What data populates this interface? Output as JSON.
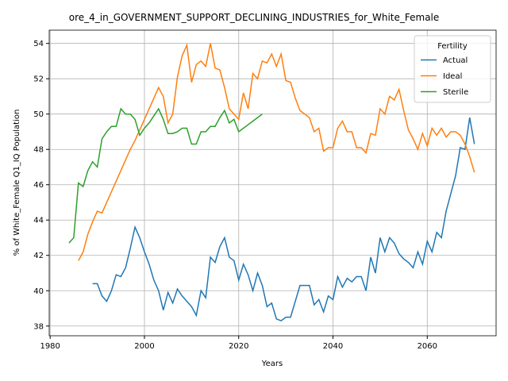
{
  "chart_data": {
    "type": "line",
    "title": "ore_4_in_GOVERNMENT_SUPPORT_DECLINING_INDUSTRIES_for_White_Female",
    "xlabel": "Years",
    "ylabel": "% of White_Female Q1_IQ Population",
    "legend_title": "Fertility",
    "legend": "upper right",
    "grid": true,
    "xlim": [
      1979.8,
      2074.6
    ],
    "xticks": [
      1980,
      2000,
      2020,
      2040,
      2060
    ],
    "ylim": [
      37.45,
      54.75
    ],
    "yticks": [
      38,
      40,
      42,
      44,
      46,
      48,
      50,
      52,
      54
    ],
    "x": [
      1984,
      1985,
      1986,
      1987,
      1988,
      1989,
      1990,
      1991,
      1992,
      1993,
      1994,
      1995,
      1996,
      1997,
      1998,
      1999,
      2000,
      2001,
      2002,
      2003,
      2004,
      2005,
      2006,
      2007,
      2008,
      2009,
      2010,
      2011,
      2012,
      2013,
      2014,
      2015,
      2016,
      2017,
      2018,
      2019,
      2020,
      2021,
      2022,
      2023,
      2024,
      2025,
      2026,
      2027,
      2028,
      2029,
      2030,
      2031,
      2032,
      2033,
      2034,
      2035,
      2036,
      2037,
      2038,
      2039,
      2040,
      2041,
      2042,
      2043,
      2044,
      2045,
      2046,
      2047,
      2048,
      2049,
      2050,
      2051,
      2052,
      2053,
      2054,
      2055,
      2056,
      2057,
      2058,
      2059,
      2060,
      2061,
      2062,
      2063,
      2064,
      2065,
      2066,
      2067,
      2068,
      2069,
      2070
    ],
    "series": [
      {
        "name": "Actual",
        "color": "#1f77b4",
        "values": [
          null,
          null,
          null,
          null,
          null,
          40.4,
          40.4,
          39.7,
          39.4,
          40.0,
          40.9,
          40.8,
          41.3,
          42.4,
          43.6,
          43.0,
          42.2,
          41.5,
          40.6,
          40.0,
          38.9,
          39.9,
          39.3,
          40.1,
          39.7,
          39.4,
          39.1,
          38.6,
          40.0,
          39.6,
          41.9,
          41.6,
          42.5,
          43.0,
          41.9,
          41.7,
          40.6,
          41.5,
          40.9,
          40.0,
          41.0,
          40.3,
          39.1,
          39.3,
          38.4,
          38.3,
          38.5,
          38.5,
          39.4,
          40.3,
          40.3,
          40.3,
          39.2,
          39.5,
          38.8,
          39.7,
          39.5,
          40.8,
          40.2,
          40.7,
          40.5,
          40.8,
          40.8,
          40.0,
          41.9,
          41.0,
          43.0,
          42.2,
          43.0,
          42.7,
          42.1,
          41.8,
          41.6,
          41.3,
          42.2,
          41.5,
          42.8,
          42.2,
          43.3,
          43.0,
          44.5,
          45.5,
          46.5,
          48.1,
          48.0,
          49.8,
          48.3
        ]
      },
      {
        "name": "Ideal",
        "color": "#ff7f0e",
        "values": [
          null,
          null,
          41.7,
          42.2,
          43.2,
          43.9,
          44.5,
          44.4,
          45.0,
          45.6,
          46.2,
          46.8,
          47.4,
          48.0,
          48.5,
          49.1,
          49.7,
          50.3,
          50.9,
          51.5,
          51.0,
          49.5,
          50.0,
          52.1,
          53.3,
          53.9,
          51.8,
          52.8,
          53.0,
          52.7,
          54.0,
          52.6,
          52.5,
          51.5,
          50.3,
          50.0,
          49.7,
          51.2,
          50.3,
          52.3,
          52.0,
          53.0,
          52.9,
          53.4,
          52.7,
          53.4,
          51.9,
          51.8,
          50.9,
          50.2,
          50.0,
          49.8,
          49.0,
          49.2,
          47.9,
          48.1,
          48.1,
          49.2,
          49.6,
          49.0,
          49.0,
          48.1,
          48.1,
          47.8,
          48.9,
          48.8,
          50.3,
          50.0,
          51.0,
          50.8,
          51.4,
          50.2,
          49.1,
          48.6,
          48.0,
          48.9,
          48.2,
          49.2,
          48.8,
          49.2,
          48.7,
          49.0,
          49.0,
          48.8,
          48.3,
          47.6,
          46.7
        ]
      },
      {
        "name": "Sterile",
        "color": "#2ca02c",
        "values": [
          42.7,
          43.0,
          46.1,
          45.9,
          46.8,
          47.3,
          47.0,
          48.6,
          49.0,
          49.3,
          49.3,
          50.3,
          50.0,
          50.0,
          49.7,
          48.8,
          49.2,
          49.5,
          49.9,
          50.3,
          49.7,
          48.9,
          48.9,
          49.0,
          49.2,
          49.2,
          48.3,
          48.3,
          49.0,
          49.0,
          49.3,
          49.3,
          49.8,
          50.2,
          49.5,
          49.7,
          49.0,
          49.2,
          49.4,
          49.6,
          49.8,
          50.0,
          null,
          null,
          null,
          null,
          null,
          null,
          null,
          null,
          null,
          null,
          null,
          null,
          null,
          null,
          null,
          null,
          null,
          null,
          null,
          null,
          null,
          null,
          null,
          null,
          null,
          null,
          null,
          null,
          null,
          null,
          null,
          null,
          null,
          null,
          null,
          null,
          null,
          null,
          null,
          null,
          null,
          null,
          null,
          null,
          null
        ]
      }
    ]
  }
}
